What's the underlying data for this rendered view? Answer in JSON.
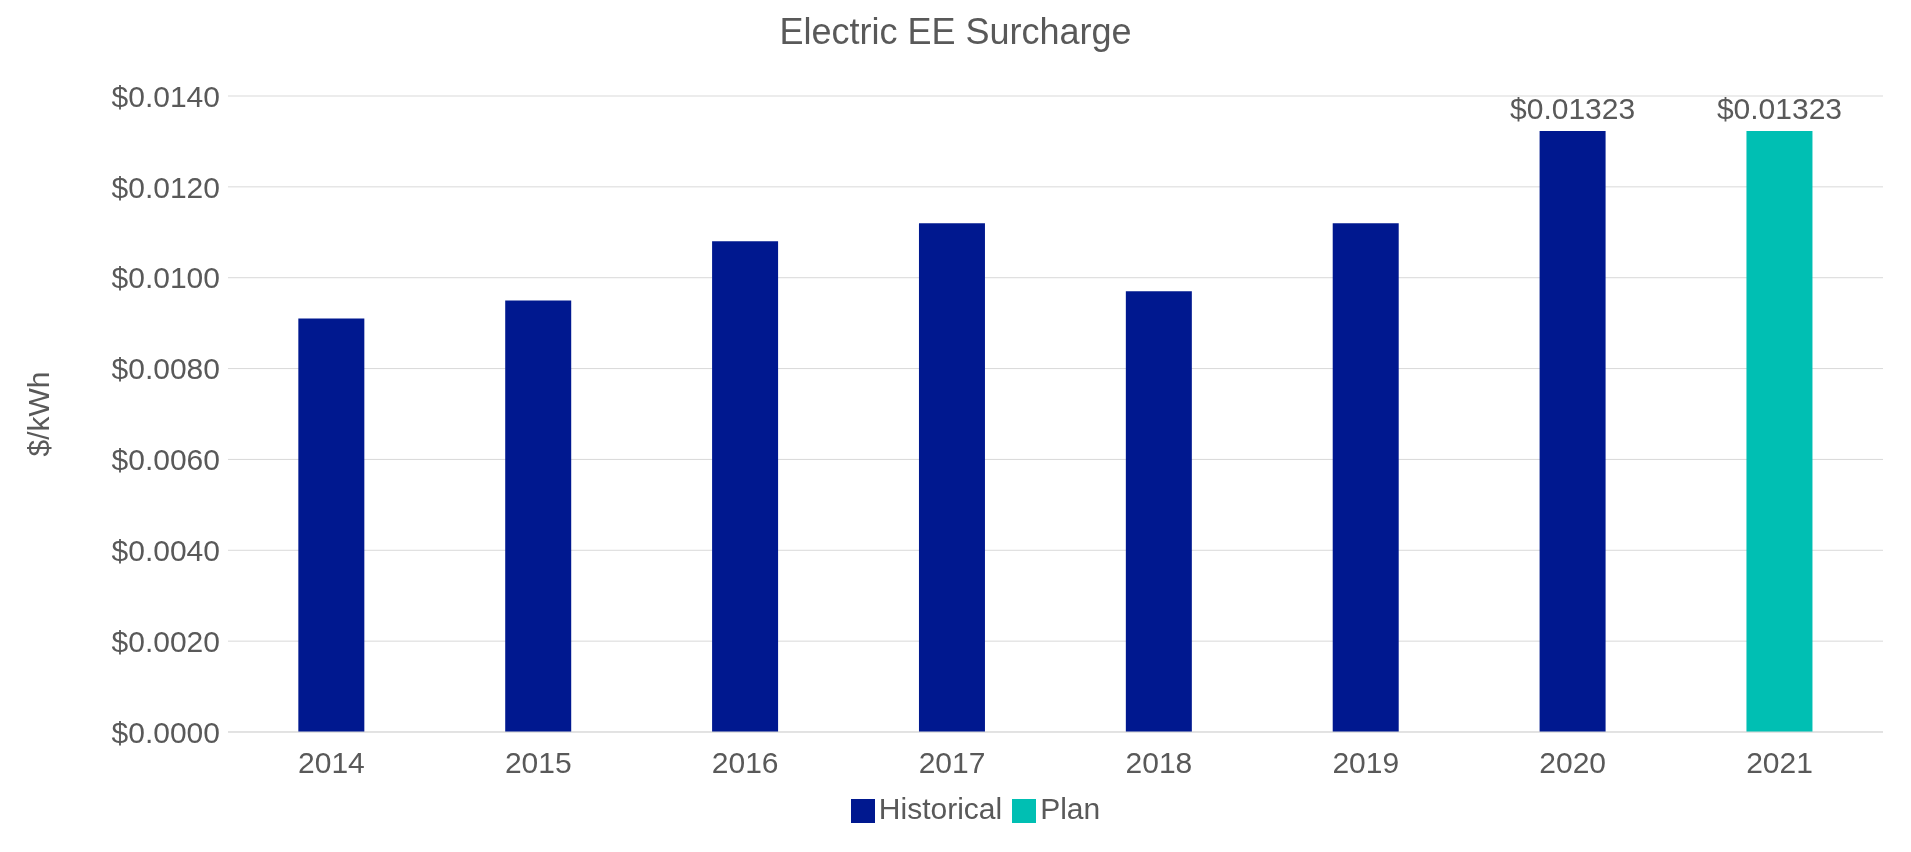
{
  "chart_data": {
    "type": "bar",
    "title": "Electric EE Surcharge",
    "ylabel": "$/kWh",
    "categories": [
      "2014",
      "2015",
      "2016",
      "2017",
      "2018",
      "2019",
      "2020",
      "2021"
    ],
    "series": [
      {
        "name": "Historical",
        "color": "#00188f",
        "values": [
          0.0091,
          0.0095,
          0.0108,
          0.0112,
          0.0097,
          0.0112,
          0.01323,
          null
        ],
        "value_labels": [
          null,
          null,
          null,
          null,
          null,
          null,
          "$0.01323",
          null
        ]
      },
      {
        "name": "Plan",
        "color": "#00bfb3",
        "values": [
          null,
          null,
          null,
          null,
          null,
          null,
          null,
          0.01323
        ],
        "value_labels": [
          null,
          null,
          null,
          null,
          null,
          null,
          null,
          "$0.01323"
        ]
      }
    ],
    "ylim": [
      0,
      0.014
    ],
    "yticks": [
      {
        "value": 0,
        "label": "$0.0000"
      },
      {
        "value": 0.002,
        "label": "$0.0020"
      },
      {
        "value": 0.004,
        "label": "$0.0040"
      },
      {
        "value": 0.006,
        "label": "$0.0060"
      },
      {
        "value": 0.008,
        "label": "$0.0080"
      },
      {
        "value": 0.01,
        "label": "$0.0100"
      },
      {
        "value": 0.012,
        "label": "$0.0120"
      },
      {
        "value": 0.014,
        "label": "$0.0140"
      }
    ],
    "grid": "y",
    "legend": "bottom"
  }
}
